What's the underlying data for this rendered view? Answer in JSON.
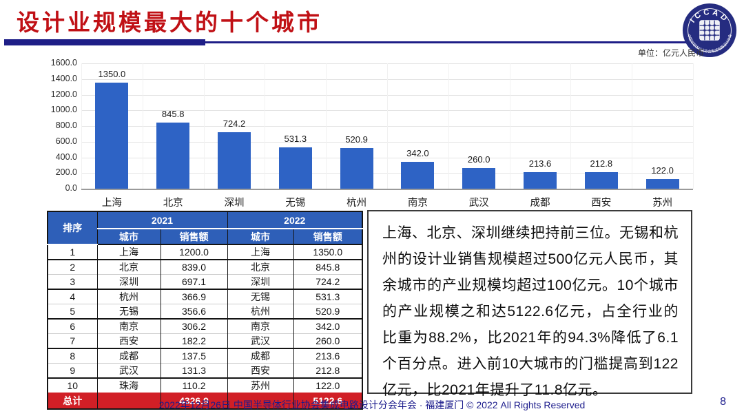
{
  "header": {
    "title": "设计业规模最大的十个城市",
    "unit_label": "单位：亿元人民币"
  },
  "logo": {
    "top_text": "ICCAD",
    "ring_text": "中国半导体行业协会集成电路设计分会"
  },
  "chart_data": {
    "type": "bar",
    "title": "",
    "categories": [
      "上海",
      "北京",
      "深圳",
      "无锡",
      "杭州",
      "南京",
      "武汉",
      "成都",
      "西安",
      "苏州"
    ],
    "values": [
      1350.0,
      845.8,
      724.2,
      531.3,
      520.9,
      342.0,
      260.0,
      213.6,
      212.8,
      122.0
    ],
    "xlabel": "",
    "ylabel": "",
    "ylim": [
      0,
      1600
    ],
    "ytick_step": 200,
    "grid": true,
    "legend": "none",
    "bar_color": "#2e63c5"
  },
  "table": {
    "col_rank": "排序",
    "year_2021": "2021",
    "year_2022": "2022",
    "col_city": "城市",
    "col_sales": "销售额",
    "rows": [
      [
        "1",
        "上海",
        "1200.0",
        "上海",
        "1350.0"
      ],
      [
        "2",
        "北京",
        "839.0",
        "北京",
        "845.8"
      ],
      [
        "3",
        "深圳",
        "697.1",
        "深圳",
        "724.2"
      ],
      [
        "4",
        "杭州",
        "366.9",
        "无锡",
        "531.3"
      ],
      [
        "5",
        "无锡",
        "356.6",
        "杭州",
        "520.9"
      ],
      [
        "6",
        "南京",
        "306.2",
        "南京",
        "342.0"
      ],
      [
        "7",
        "西安",
        "182.2",
        "武汉",
        "260.0"
      ],
      [
        "8",
        "成都",
        "137.5",
        "成都",
        "213.6"
      ],
      [
        "9",
        "武汉",
        "131.3",
        "西安",
        "212.8"
      ],
      [
        "10",
        "珠海",
        "110.2",
        "苏州",
        "122.0"
      ]
    ],
    "total": {
      "label": "总计",
      "sales_2021": "4326.9",
      "sales_2022": "5122.6"
    }
  },
  "note": {
    "text": "上海、北京、深圳继续把持前三位。无锡和杭州的设计业销售规模超过500亿元人民币，其余城市的产业规模均超过100亿元。10个城市的产业规模之和达5122.6亿元，占全行业的比重为88.2%，比2021年的94.3%降低了6.1个百分点。进入前10大城市的门槛提高到122亿元，比2021年提升了11.8亿元。"
  },
  "footer": {
    "text": "2022年12月26日 中国半导体行业协会集成电路设计分会年会 · 福建厦门 © 2022 All Rights Reserved",
    "page": "8"
  },
  "colors": {
    "title_red": "#c01015",
    "underline_navy": "#1e1e87",
    "bar_blue": "#2e63c5",
    "table_header_blue": "#2e5fb8",
    "total_row_red": "#d11f26",
    "footer_navy": "#1c1c8c",
    "logo_navy": "#252c80"
  }
}
